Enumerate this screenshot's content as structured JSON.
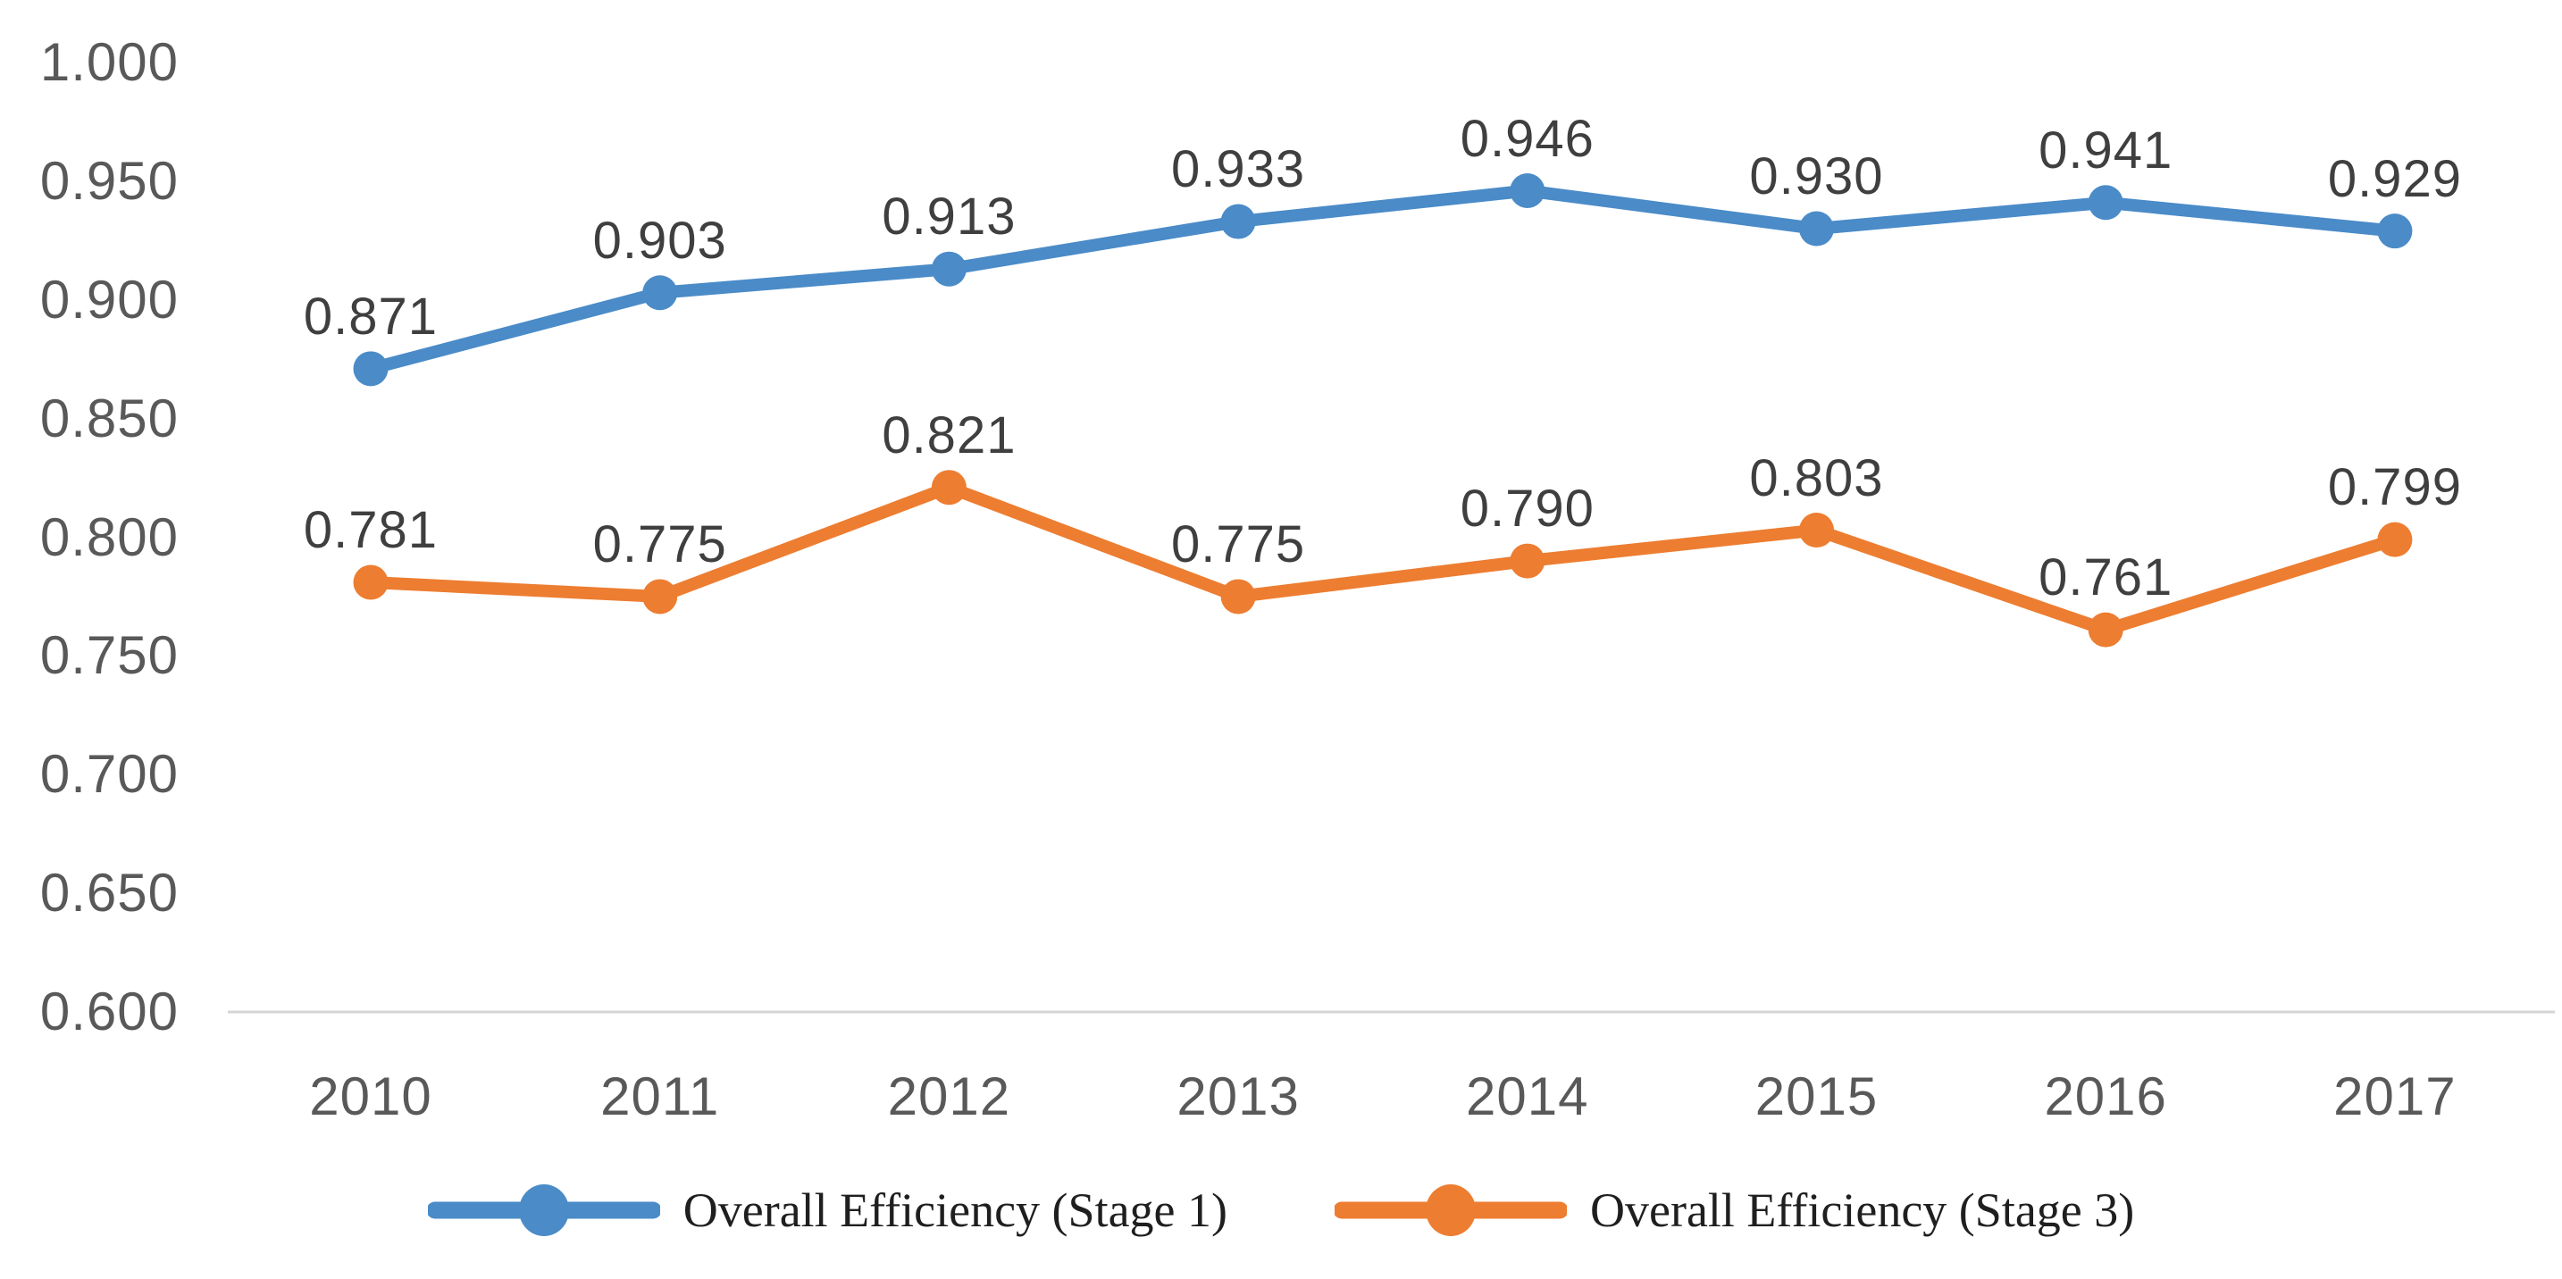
{
  "chart_data": {
    "type": "line",
    "x": [
      "2010",
      "2011",
      "2012",
      "2013",
      "2014",
      "2015",
      "2016",
      "2017"
    ],
    "series": [
      {
        "name": "Overall Efficiency (Stage 1)",
        "color": "#4A8BC8",
        "values": [
          0.871,
          0.903,
          0.913,
          0.933,
          0.946,
          0.93,
          0.941,
          0.929
        ]
      },
      {
        "name": "Overall Efficiency (Stage 3)",
        "color": "#ED7D31",
        "values": [
          0.781,
          0.775,
          0.821,
          0.775,
          0.79,
          0.803,
          0.761,
          0.799
        ]
      }
    ],
    "yticks": [
      "1.000",
      "0.950",
      "0.900",
      "0.850",
      "0.800",
      "0.750",
      "0.700",
      "0.650",
      "0.600"
    ],
    "ylim": [
      0.6,
      1.0
    ],
    "title": "",
    "xlabel": "",
    "ylabel": "",
    "grid": false,
    "legend_position": "bottom",
    "data_labels": "above-points"
  },
  "legend": {
    "items": [
      {
        "label": "Overall Efficiency (Stage 1)",
        "color": "#4A8BC8"
      },
      {
        "label": "Overall Efficiency (Stage 3)",
        "color": "#ED7D31"
      }
    ]
  },
  "colors": {
    "background": "#FFFFFF",
    "axis_line": "#D6D6D6",
    "tick_label": "#595959",
    "data_label": "#3F3F3F"
  }
}
